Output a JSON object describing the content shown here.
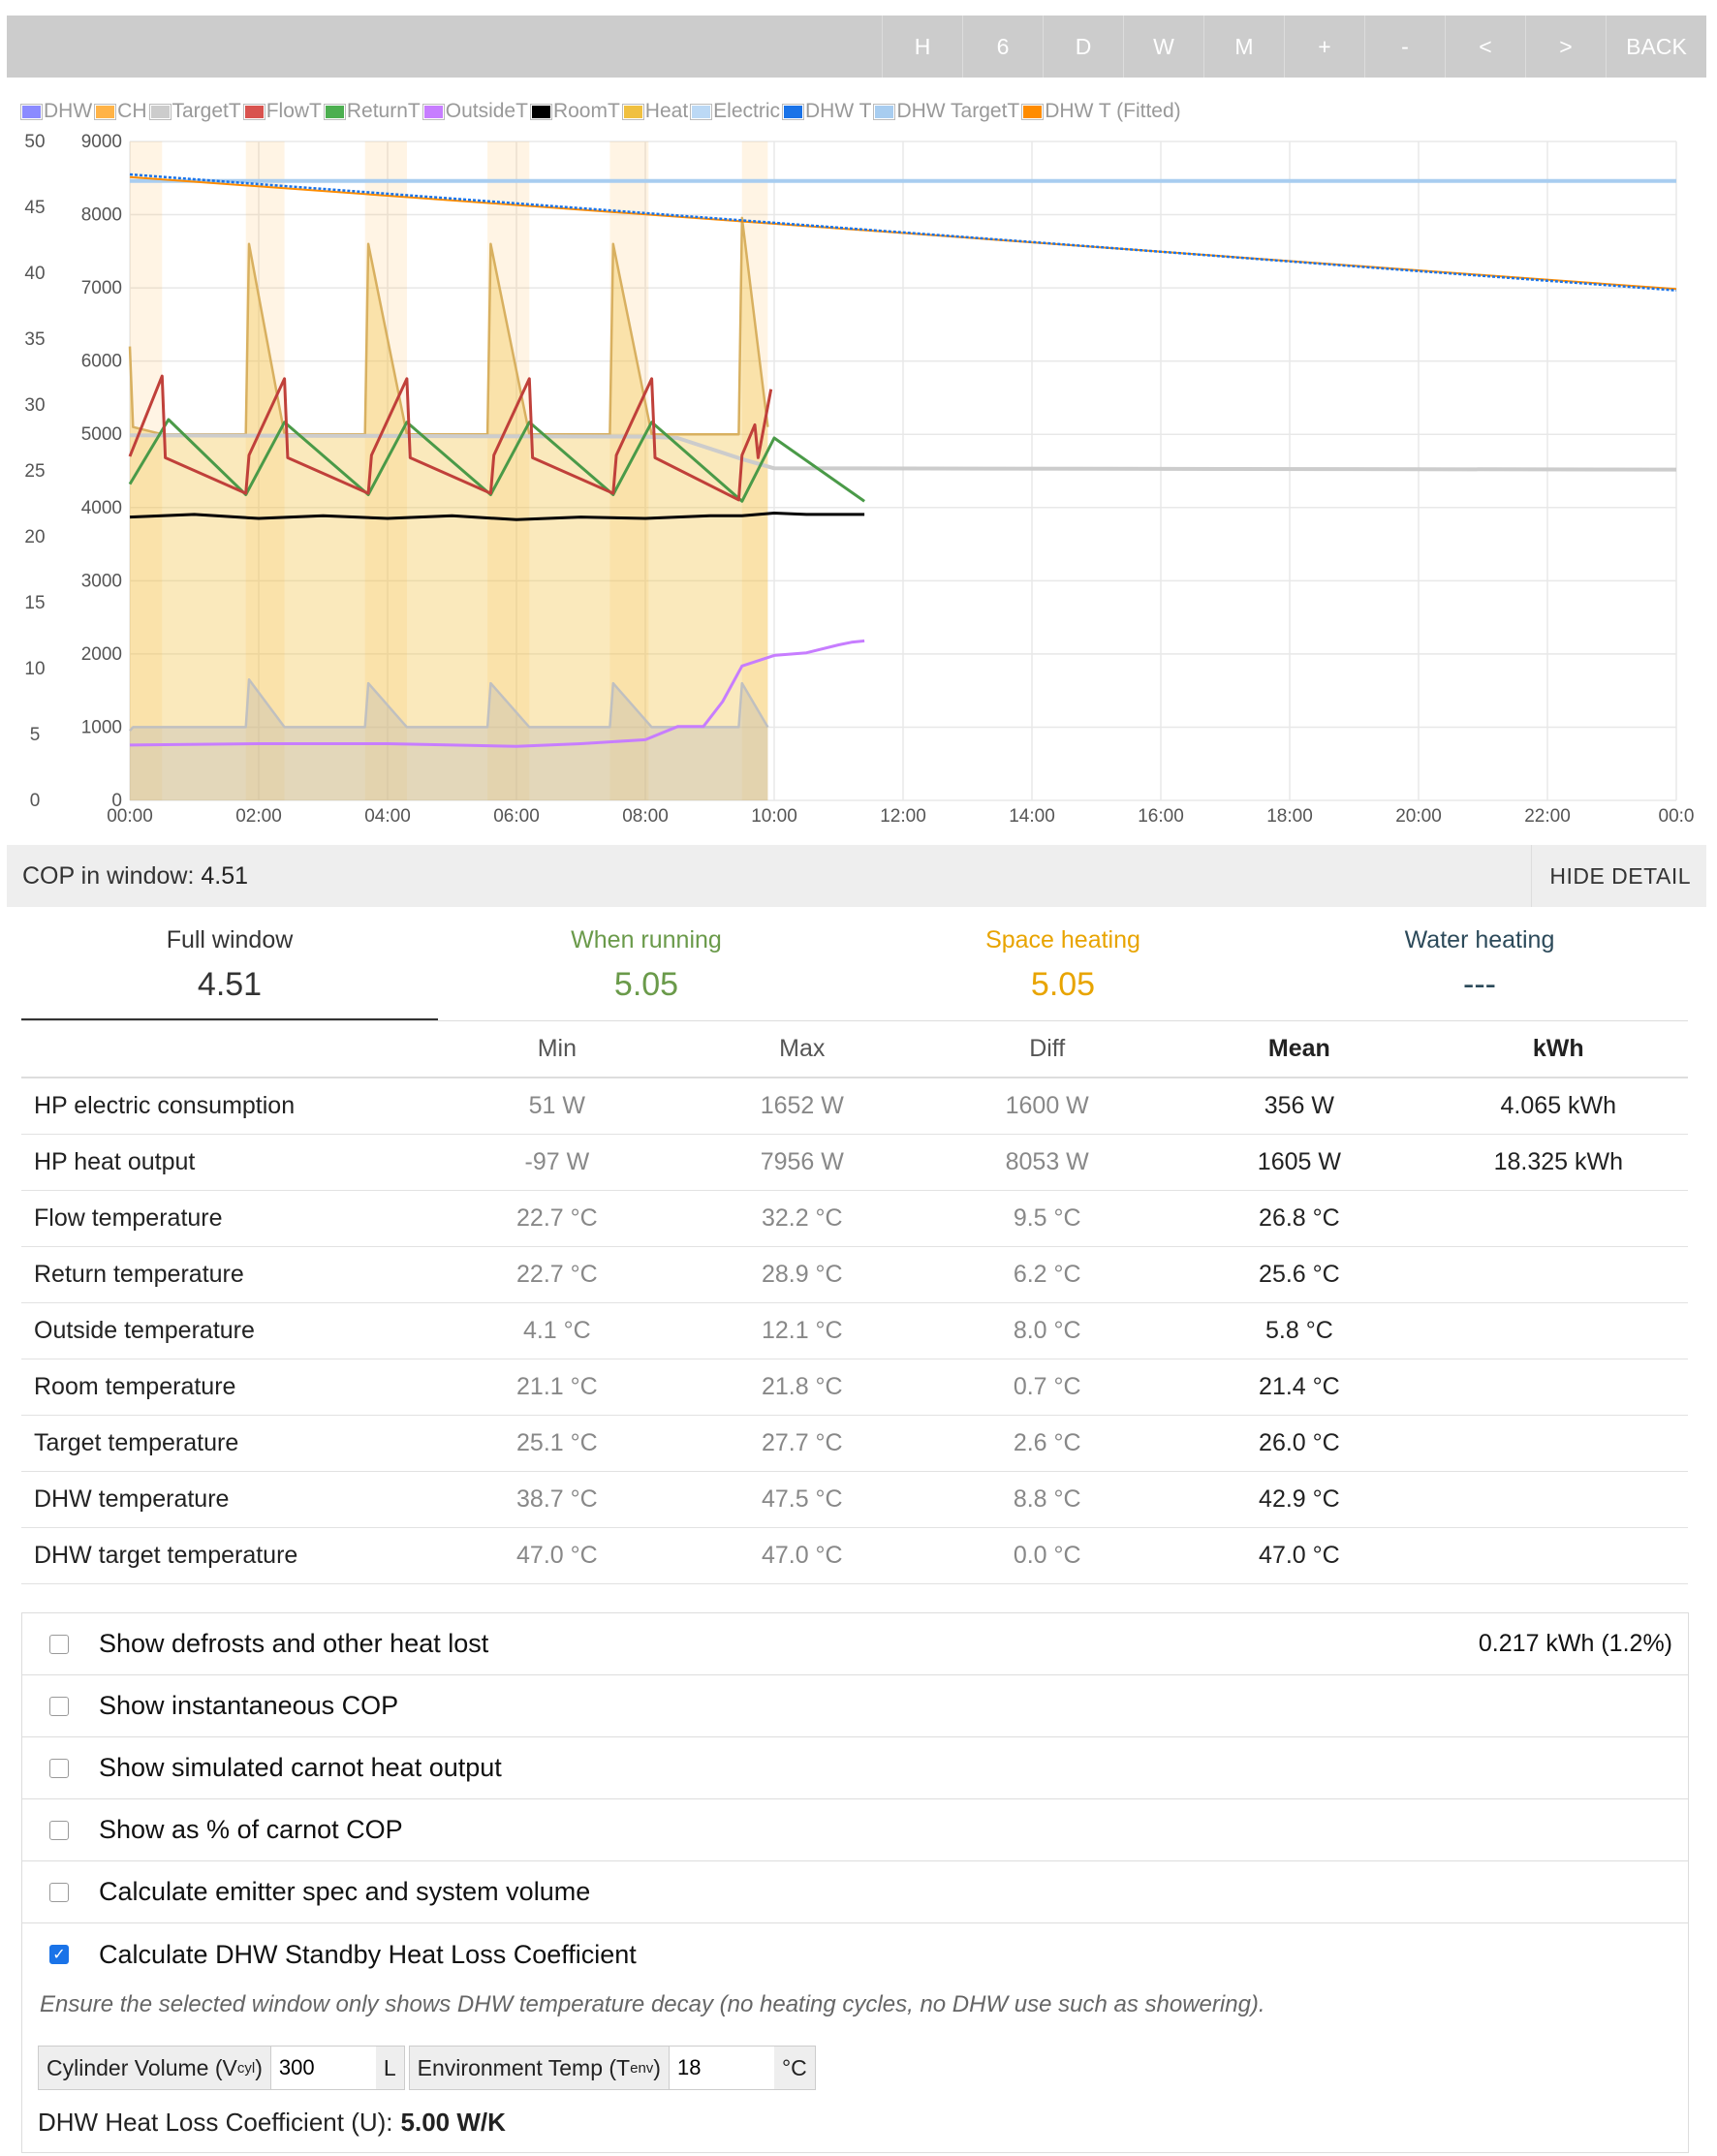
{
  "toolbar": {
    "buttons": [
      "H",
      "6",
      "D",
      "W",
      "M",
      "+",
      "-",
      "<",
      ">",
      "BACK"
    ]
  },
  "legend": [
    {
      "label": "DHW",
      "color": "#8b8bff"
    },
    {
      "label": "CH",
      "color": "#ffb347"
    },
    {
      "label": "TargetT",
      "color": "#cccccc"
    },
    {
      "label": "FlowT",
      "color": "#d9534f"
    },
    {
      "label": "ReturnT",
      "color": "#4caf50"
    },
    {
      "label": "OutsideT",
      "color": "#c77dff"
    },
    {
      "label": "RoomT",
      "color": "#000000"
    },
    {
      "label": "Heat",
      "color": "#f0c040"
    },
    {
      "label": "Electric",
      "color": "#bcd9f5"
    },
    {
      "label": "DHW T",
      "color": "#1a73e8"
    },
    {
      "label": "DHW TargetT",
      "color": "#a8cdf0"
    },
    {
      "label": "DHW T (Fitted)",
      "color": "#ff8c00"
    }
  ],
  "chart_data": {
    "type": "line",
    "x_range_hours": [
      0,
      24
    ],
    "x_tick_labels": [
      "00:00",
      "02:00",
      "04:00",
      "06:00",
      "08:00",
      "10:00",
      "12:00",
      "14:00",
      "16:00",
      "18:00",
      "20:00",
      "22:00",
      "00:0"
    ],
    "y_left_ticks": [
      "50",
      "45",
      "40",
      "35",
      "30",
      "25",
      "20",
      "15",
      "10",
      "5",
      "0"
    ],
    "y_right_ticks": [
      "9000",
      "8000",
      "7000",
      "6000",
      "5000",
      "4000",
      "3000",
      "2000",
      "1000",
      "0"
    ],
    "y_left_range": [
      0,
      50
    ],
    "y_right_range": [
      0,
      9000
    ],
    "grid": true,
    "legend_position": "top-left",
    "ch_periods": [
      [
        0.0,
        0.5
      ],
      [
        1.8,
        2.4
      ],
      [
        3.65,
        4.3
      ],
      [
        5.55,
        6.2
      ],
      [
        7.45,
        8.05
      ],
      [
        9.5,
        9.9
      ]
    ],
    "series": [
      {
        "name": "DHW T",
        "axis": "left",
        "x": [
          0,
          24
        ],
        "y": [
          47.5,
          38.7
        ]
      },
      {
        "name": "DHW T (Fitted)",
        "axis": "left",
        "x": [
          0,
          24
        ],
        "y": [
          47.3,
          38.8
        ]
      },
      {
        "name": "DHW TargetT",
        "axis": "left",
        "x": [
          0,
          24
        ],
        "y": [
          47.0,
          47.0
        ]
      },
      {
        "name": "TargetT",
        "axis": "left",
        "x": [
          0,
          8,
          8.5,
          9.5,
          10,
          24
        ],
        "y": [
          27.7,
          27.6,
          27.5,
          25.9,
          25.2,
          25.1
        ]
      },
      {
        "name": "RoomT",
        "axis": "left",
        "x": [
          0,
          1,
          2,
          3,
          4,
          5,
          6,
          7,
          8,
          9,
          9.5,
          10,
          10.5,
          11,
          11.4
        ],
        "y": [
          21.5,
          21.7,
          21.4,
          21.6,
          21.4,
          21.6,
          21.3,
          21.5,
          21.4,
          21.6,
          21.6,
          21.8,
          21.7,
          21.7,
          21.7
        ]
      },
      {
        "name": "OutsideT",
        "axis": "left",
        "x": [
          0,
          2,
          4,
          6,
          7,
          8,
          8.5,
          8.9,
          9.2,
          9.5,
          10,
          10.5,
          11,
          11.2,
          11.4
        ],
        "y": [
          4.2,
          4.3,
          4.3,
          4.1,
          4.3,
          4.6,
          5.6,
          5.6,
          7.5,
          10.2,
          11.0,
          11.2,
          11.8,
          12.0,
          12.1
        ]
      },
      {
        "name": "FlowT",
        "axis": "left",
        "x": [
          0,
          0.5,
          0.55,
          1.8,
          1.85,
          2.4,
          2.45,
          3.7,
          3.75,
          4.3,
          4.35,
          5.6,
          5.65,
          6.2,
          6.25,
          7.5,
          7.55,
          8.1,
          8.15,
          9.45,
          9.5,
          9.7,
          9.75,
          9.95
        ],
        "y": [
          26.1,
          32.2,
          26.0,
          23.3,
          26.2,
          32.0,
          26.0,
          23.3,
          26.2,
          32.0,
          26.0,
          23.3,
          26.2,
          32.0,
          26.0,
          23.3,
          26.2,
          32.0,
          26.0,
          22.8,
          26.2,
          28.5,
          26.0,
          31.2
        ]
      },
      {
        "name": "ReturnT",
        "axis": "left",
        "x": [
          0,
          0.6,
          1.8,
          2.4,
          3.7,
          4.3,
          5.6,
          6.2,
          7.5,
          8.1,
          9.5,
          10.0,
          11.4
        ],
        "y": [
          24.0,
          28.9,
          23.2,
          28.7,
          23.2,
          28.7,
          23.2,
          28.7,
          23.2,
          28.7,
          22.7,
          27.5,
          22.7
        ]
      },
      {
        "name": "Heat",
        "axis": "right",
        "x": [
          0,
          0.05,
          0.5,
          1.8,
          1.85,
          2.4,
          3.65,
          3.7,
          4.3,
          5.55,
          5.6,
          6.2,
          7.45,
          7.5,
          8.1,
          9.45,
          9.5,
          9.9
        ],
        "y": [
          6200,
          5100,
          5000,
          5000,
          7600,
          5000,
          5000,
          7600,
          5000,
          5000,
          7600,
          5000,
          5000,
          7600,
          5000,
          5000,
          7956,
          5100
        ]
      },
      {
        "name": "Electric",
        "axis": "right",
        "x": [
          0,
          0.05,
          0.5,
          1.8,
          1.85,
          2.4,
          3.65,
          3.7,
          4.3,
          5.55,
          5.6,
          6.2,
          7.45,
          7.5,
          8.1,
          9.45,
          9.5,
          9.9
        ],
        "y": [
          950,
          1000,
          1000,
          1000,
          1652,
          1000,
          1000,
          1600,
          1000,
          1000,
          1600,
          1000,
          1000,
          1600,
          1000,
          1000,
          1600,
          1000
        ]
      }
    ]
  },
  "cop": {
    "label": "COP in window:",
    "value": "4.51",
    "hide_detail": "HIDE DETAIL"
  },
  "summary": [
    {
      "title": "Full window",
      "value": "4.51",
      "color": "#333333"
    },
    {
      "title": "When running",
      "value": "5.05",
      "color": "#6a9a4a"
    },
    {
      "title": "Space heating",
      "value": "5.05",
      "color": "#e8a400"
    },
    {
      "title": "Water heating",
      "value": "---",
      "color": "#2c4a5a"
    }
  ],
  "stats": {
    "headers": [
      "",
      "Min",
      "Max",
      "Diff",
      "Mean",
      "kWh"
    ],
    "rows": [
      [
        "HP electric consumption",
        "51 W",
        "1652 W",
        "1600 W",
        "356 W",
        "4.065 kWh"
      ],
      [
        "HP heat output",
        "-97 W",
        "7956 W",
        "8053 W",
        "1605 W",
        "18.325 kWh"
      ],
      [
        "Flow temperature",
        "22.7 °C",
        "32.2 °C",
        "9.5 °C",
        "26.8 °C",
        ""
      ],
      [
        "Return temperature",
        "22.7 °C",
        "28.9 °C",
        "6.2 °C",
        "25.6 °C",
        ""
      ],
      [
        "Outside temperature",
        "4.1 °C",
        "12.1 °C",
        "8.0 °C",
        "5.8 °C",
        ""
      ],
      [
        "Room temperature",
        "21.1 °C",
        "21.8 °C",
        "0.7 °C",
        "21.4 °C",
        ""
      ],
      [
        "Target temperature",
        "25.1 °C",
        "27.7 °C",
        "2.6 °C",
        "26.0 °C",
        ""
      ],
      [
        "DHW temperature",
        "38.7 °C",
        "47.5 °C",
        "8.8 °C",
        "42.9 °C",
        ""
      ],
      [
        "DHW target temperature",
        "47.0 °C",
        "47.0 °C",
        "0.0 °C",
        "47.0 °C",
        ""
      ]
    ]
  },
  "options": [
    {
      "label": "Show defrosts and other heat lost",
      "checked": false,
      "right": "0.217 kWh (1.2%)"
    },
    {
      "label": "Show instantaneous COP",
      "checked": false
    },
    {
      "label": "Show simulated carnot heat output",
      "checked": false
    },
    {
      "label": "Show as % of carnot COP",
      "checked": false
    },
    {
      "label": "Calculate emitter spec and system volume",
      "checked": false
    },
    {
      "label": "Calculate DHW Standby Heat Loss Coefficient",
      "checked": true
    }
  ],
  "dhw_loss": {
    "hint": "Ensure the selected window only shows DHW temperature decay (no heating cycles, no DHW use such as showering).",
    "cyl_label": "Cylinder Volume (V",
    "cyl_sub": "cyl",
    "cyl_value": "300",
    "cyl_unit": "L",
    "env_label": "Environment Temp (T",
    "env_sub": "env",
    "env_value": "18",
    "env_unit": "°C",
    "result_label": "DHW Heat Loss Coefficient (U):",
    "result_value": "5.00 W/K"
  }
}
